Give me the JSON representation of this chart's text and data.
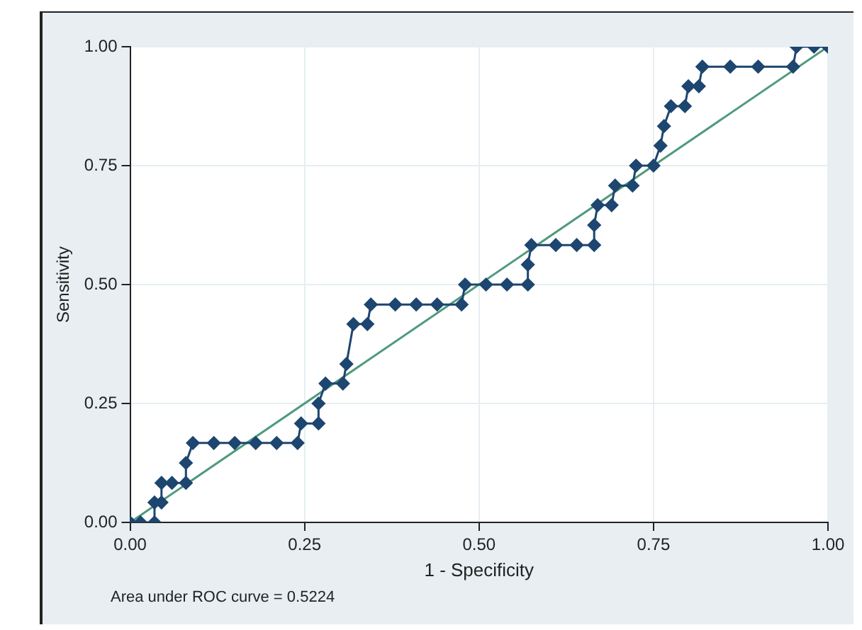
{
  "chart_data": {
    "type": "line",
    "xlabel": "1 - Specificity",
    "ylabel": "Sensitivity",
    "annotations": [
      "Area under ROC curve = 0.5224"
    ],
    "xlim": [
      0,
      1
    ],
    "ylim": [
      0,
      1
    ],
    "xticks": [
      {
        "value": 0,
        "label": "0.00"
      },
      {
        "value": 0.25,
        "label": "0.25"
      },
      {
        "value": 0.5,
        "label": "0.50"
      },
      {
        "value": 0.75,
        "label": "0.75"
      },
      {
        "value": 1,
        "label": "1.00"
      }
    ],
    "yticks": [
      {
        "value": 0,
        "label": "0.00"
      },
      {
        "value": 0.25,
        "label": "0.25"
      },
      {
        "value": 0.5,
        "label": "0.50"
      },
      {
        "value": 0.75,
        "label": "0.75"
      },
      {
        "value": 1,
        "label": "1.00"
      }
    ],
    "grid": true,
    "legend": false,
    "series": [
      {
        "color": "#1d4670",
        "marker": "diamond",
        "line_style": "solid",
        "x": [
          0,
          0.015,
          0.035,
          0.035,
          0.045,
          0.045,
          0.06,
          0.08,
          0.08,
          0.09,
          0.12,
          0.15,
          0.18,
          0.21,
          0.24,
          0.245,
          0.27,
          0.27,
          0.28,
          0.305,
          0.31,
          0.32,
          0.34,
          0.345,
          0.38,
          0.41,
          0.44,
          0.475,
          0.48,
          0.51,
          0.54,
          0.57,
          0.57,
          0.575,
          0.61,
          0.64,
          0.665,
          0.665,
          0.67,
          0.69,
          0.695,
          0.72,
          0.725,
          0.75,
          0.76,
          0.765,
          0.775,
          0.795,
          0.8,
          0.815,
          0.82,
          0.86,
          0.9,
          0.95,
          0.955,
          0.98,
          1
        ],
        "values": [
          0,
          0,
          0,
          0.042,
          0.042,
          0.083,
          0.083,
          0.083,
          0.125,
          0.167,
          0.167,
          0.167,
          0.167,
          0.167,
          0.167,
          0.208,
          0.208,
          0.25,
          0.292,
          0.292,
          0.333,
          0.417,
          0.417,
          0.458,
          0.458,
          0.458,
          0.458,
          0.458,
          0.5,
          0.5,
          0.5,
          0.5,
          0.542,
          0.583,
          0.583,
          0.583,
          0.583,
          0.625,
          0.667,
          0.667,
          0.708,
          0.708,
          0.75,
          0.75,
          0.792,
          0.833,
          0.875,
          0.875,
          0.917,
          0.917,
          0.958,
          0.958,
          0.958,
          0.958,
          1,
          1,
          1
        ]
      },
      {
        "color": "#4f9a7c",
        "marker": "none",
        "line_style": "solid",
        "x": [
          0,
          1
        ],
        "values": [
          0,
          1
        ]
      }
    ]
  }
}
